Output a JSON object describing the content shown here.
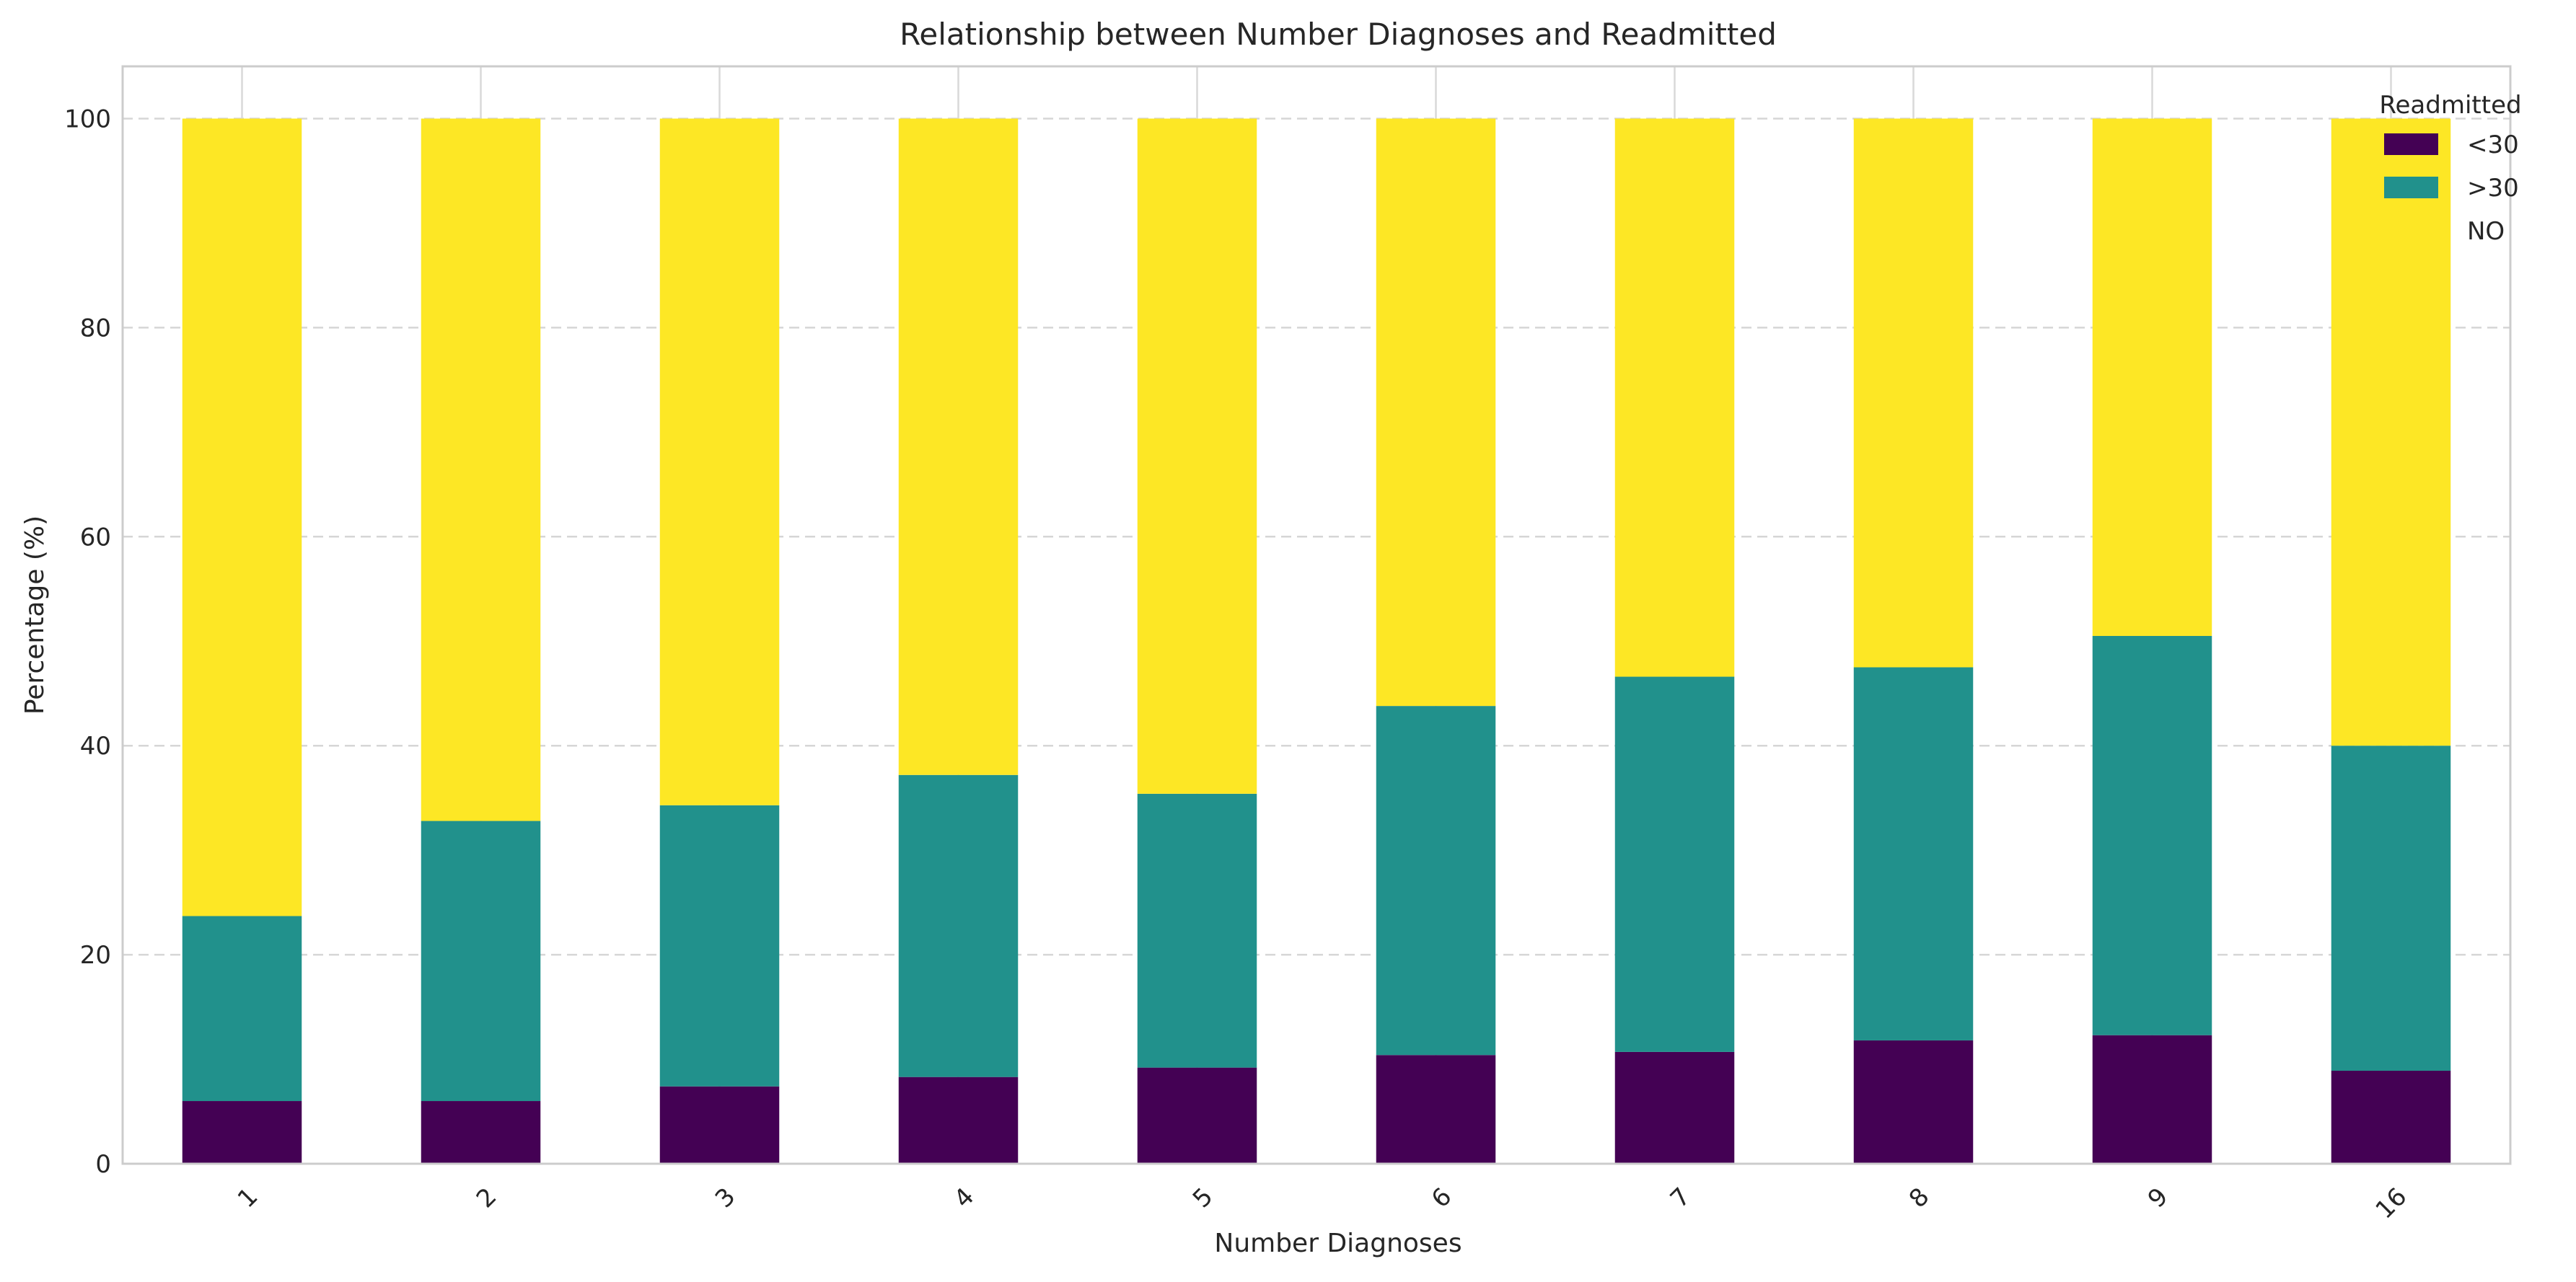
{
  "chart_data": {
    "type": "bar",
    "stacked": true,
    "title": "Relationship between Number Diagnoses and Readmitted",
    "xlabel": "Number Diagnoses",
    "ylabel": "Percentage (%)",
    "ylim": [
      0,
      105
    ],
    "yticks": [
      0,
      20,
      40,
      60,
      80,
      100
    ],
    "grid": {
      "y": true,
      "x": true
    },
    "legend": {
      "title": "Readmitted",
      "placement": "top-right"
    },
    "categories": [
      "1",
      "2",
      "3",
      "4",
      "5",
      "6",
      "7",
      "8",
      "9",
      "16"
    ],
    "series": [
      {
        "name": "<30",
        "color": "#440154",
        "values": [
          6.0,
          6.0,
          7.4,
          8.3,
          9.2,
          10.4,
          10.7,
          11.8,
          12.3,
          8.9
        ]
      },
      {
        "name": ">30",
        "color": "#21918c",
        "values": [
          17.7,
          26.8,
          26.9,
          28.9,
          26.2,
          33.4,
          35.9,
          35.7,
          38.2,
          31.1
        ]
      },
      {
        "name": "NO",
        "color": "#fde725",
        "values": [
          76.3,
          67.2,
          65.7,
          62.8,
          64.6,
          56.2,
          53.4,
          52.5,
          49.5,
          60.0
        ]
      }
    ]
  }
}
